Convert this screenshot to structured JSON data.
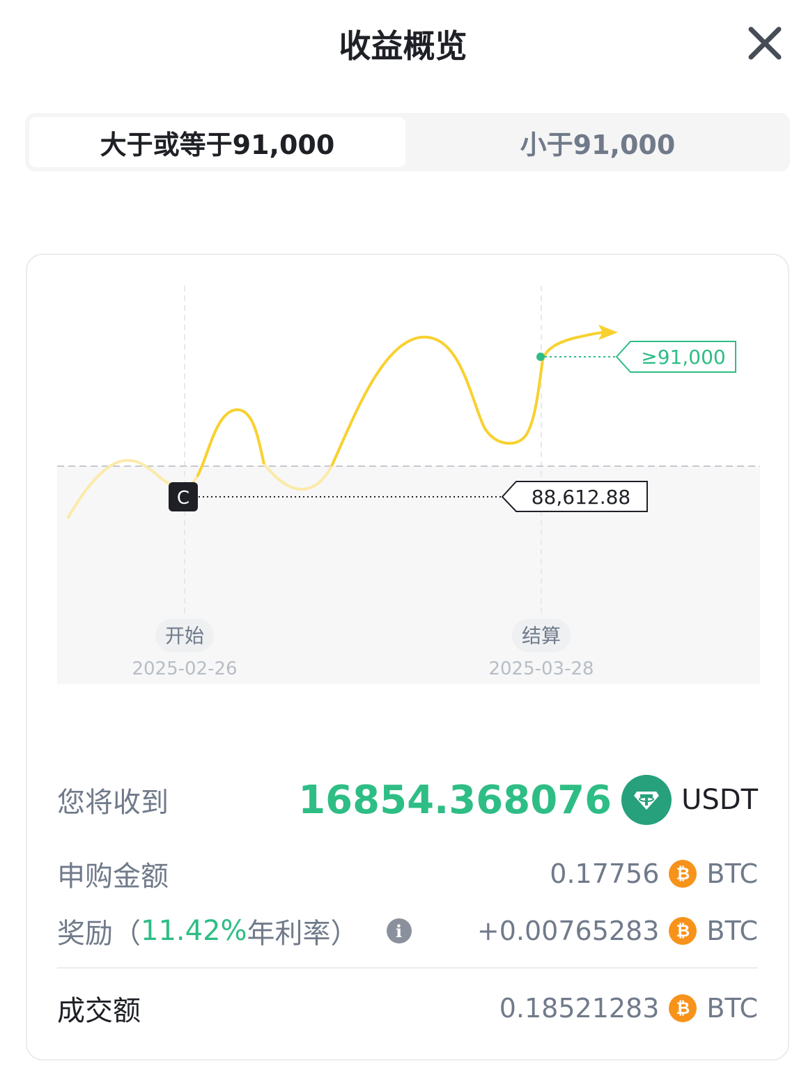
{
  "header": {
    "title": "收益概览",
    "close_icon": "close-icon"
  },
  "tabs": [
    {
      "label": "大于或等于91,000",
      "active": true
    },
    {
      "label": "小于91,000",
      "active": false
    }
  ],
  "chart": {
    "start_badge": "C",
    "current_price": "88,612.88",
    "target_label": "≥91,000",
    "start_label": "开始",
    "start_date": "2025-02-26",
    "settle_label": "结算",
    "settle_date": "2025-03-28",
    "line_color": "#f8d12f",
    "target_color": "#2ebd85"
  },
  "summary": {
    "receive_label": "您将收到",
    "receive_value": "16854.368076",
    "receive_unit": "USDT",
    "subscribe_label": "申购金额",
    "subscribe_value": "0.17756",
    "subscribe_unit": "BTC",
    "reward_label_prefix": "奖励（",
    "reward_rate": "11.42%",
    "reward_label_suffix": " 年利率）",
    "reward_value": "+0.00765283",
    "reward_unit": "BTC",
    "deal_label": "成交额",
    "deal_value": "0.18521283",
    "deal_unit": "BTC"
  },
  "colors": {
    "accent_green": "#2ebd85",
    "btc_orange": "#f7931a",
    "usdt_green": "#26a17b"
  }
}
